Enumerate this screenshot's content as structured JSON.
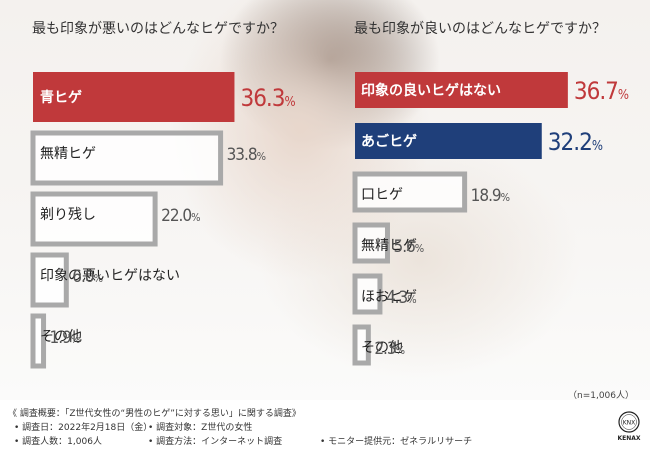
{
  "colors": {
    "bad_highlight": "#c0393b",
    "good_highlight": "#1f3f7a",
    "gray_bar": "#a9a9a9",
    "text_dark": "#222222"
  },
  "chart_data": [
    {
      "type": "bar",
      "orientation": "horizontal",
      "title": "最も印象が悪いのはどんなヒゲですか？",
      "categories": [
        "青ヒゲ",
        "無精ヒゲ",
        "剃り残し",
        "印象の悪いヒゲはない",
        "その他"
      ],
      "values": [
        36.3,
        33.8,
        22.0,
        6.0,
        1.9
      ],
      "value_labels": [
        "36.3",
        "33.8",
        "22.0",
        "6.0",
        "1.9"
      ],
      "unit": "%",
      "highlight": [
        0
      ],
      "xlim": [
        0,
        40
      ]
    },
    {
      "type": "bar",
      "orientation": "horizontal",
      "title": "最も印象が良いのはどんなヒゲですか？",
      "categories": [
        "印象の良いヒゲはない",
        "あごヒゲ",
        "口ヒゲ",
        "無精ヒゲ",
        "ほおヒゲ",
        "その他"
      ],
      "values": [
        36.7,
        32.2,
        18.9,
        5.6,
        4.3,
        2.3
      ],
      "value_labels": [
        "36.7",
        "32.2",
        "18.9",
        "5.6",
        "4.3",
        "2.3"
      ],
      "unit": "%",
      "highlight": [
        0,
        1
      ],
      "xlim": [
        0,
        40
      ]
    }
  ],
  "sample_note": "（n=1,006人）",
  "footer": {
    "survey_overview": "《 調査概要：「Z世代女性の“男性のヒゲ”に対する思い」に関する調査》",
    "survey_date": "• 調査日：2022年2月18日（金）",
    "survey_target": "• 調査対象：Z世代の女性",
    "survey_count": "• 調査人数：1,006人",
    "survey_method": "• 調査方法：インターネット調査",
    "monitor_provider": "• モニター提供元：ゼネラルリサーチ"
  },
  "logo": {
    "emblem": "KNX",
    "brand": "KENAX"
  }
}
